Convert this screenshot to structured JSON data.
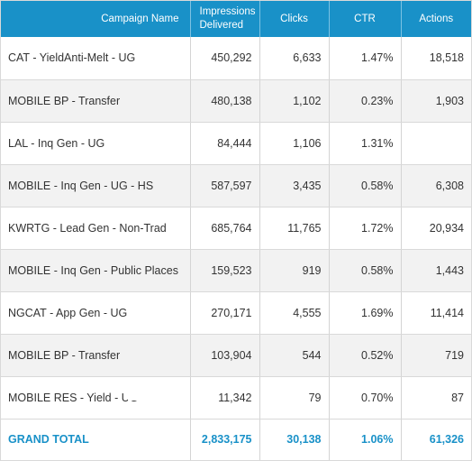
{
  "table": {
    "headers": {
      "campaign_name": "Campaign Name",
      "impressions": "Impressions Delivered",
      "clicks": "Clicks",
      "ctr": "CTR",
      "actions": "Actions"
    },
    "rows": [
      {
        "campaign": "CAT - YieldAnti-Melt - UG",
        "impressions": "450,292",
        "clicks": "6,633",
        "ctr": "1.47%",
        "actions": "18,518"
      },
      {
        "campaign": "MOBILE BP - Transfer",
        "impressions": "480,138",
        "clicks": "1,102",
        "ctr": "0.23%",
        "actions": "1,903"
      },
      {
        "campaign": "LAL - Inq Gen - UG",
        "impressions": "84,444",
        "clicks": "1,106",
        "ctr": "1.31%",
        "actions": ""
      },
      {
        "campaign": "MOBILE - Inq Gen - UG - HS",
        "impressions": "587,597",
        "clicks": "3,435",
        "ctr": "0.58%",
        "actions": "6,308"
      },
      {
        "campaign": "KWRTG - Lead Gen - Non-Trad",
        "impressions": "685,764",
        "clicks": "11,765",
        "ctr": "1.72%",
        "actions": "20,934"
      },
      {
        "campaign": "MOBILE - Inq Gen - Public Places",
        "impressions": "159,523",
        "clicks": "919",
        "ctr": "0.58%",
        "actions": "1,443"
      },
      {
        "campaign": "NGCAT - App Gen - UG",
        "impressions": "270,171",
        "clicks": "4,555",
        "ctr": "1.69%",
        "actions": "11,414"
      },
      {
        "campaign": "MOBILE BP - Transfer",
        "impressions": "103,904",
        "clicks": "544",
        "ctr": "0.52%",
        "actions": "719"
      },
      {
        "campaign": "MOBILE RES - Yield - UG",
        "impressions": "11,342",
        "clicks": "79",
        "ctr": "0.70%",
        "actions": "87"
      }
    ],
    "total": {
      "label": "GRAND TOTAL",
      "impressions": "2,833,175",
      "clicks": "30,138",
      "ctr": "1.06%",
      "actions": "61,326"
    }
  },
  "colors": {
    "header_background": "#1991c8",
    "header_text": "#ffffff",
    "total_text": "#1991c8",
    "striped_row": "#f2f2f2"
  }
}
